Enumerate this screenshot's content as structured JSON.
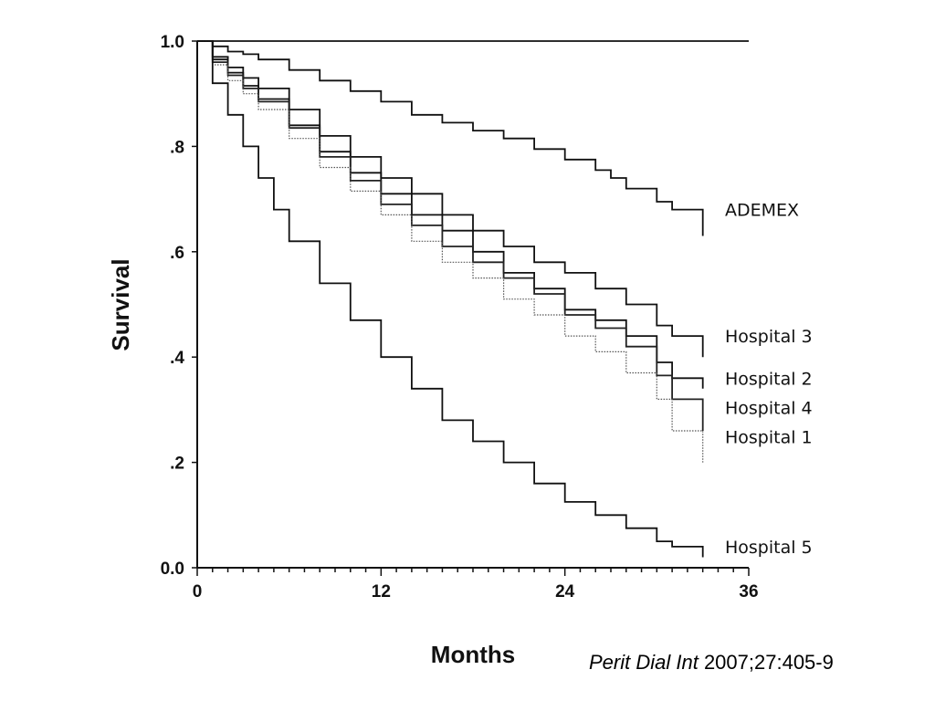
{
  "chart_data": {
    "type": "line",
    "xlabel": "Months",
    "ylabel": "Survival",
    "xlim": [
      0,
      36
    ],
    "ylim": [
      0,
      1
    ],
    "x_ticks": [
      "0",
      "12",
      "24",
      "36"
    ],
    "y_ticks": [
      "0.0",
      ".2",
      ".4",
      ".6",
      ".8",
      "1.0"
    ],
    "grid": false,
    "series": [
      {
        "name": "",
        "style": "solid",
        "color": "#111111",
        "x": [
          0,
          36
        ],
        "y": [
          1.0,
          1.0
        ]
      },
      {
        "name": "ADEMEX",
        "style": "solid",
        "color": "#111111",
        "x": [
          0,
          1,
          2,
          3,
          4,
          6,
          8,
          10,
          12,
          14,
          16,
          18,
          20,
          22,
          24,
          26,
          27,
          28,
          30,
          31,
          32,
          33,
          33
        ],
        "y": [
          1.0,
          0.99,
          0.98,
          0.975,
          0.965,
          0.945,
          0.925,
          0.905,
          0.885,
          0.86,
          0.845,
          0.83,
          0.815,
          0.795,
          0.775,
          0.755,
          0.74,
          0.72,
          0.695,
          0.68,
          0.68,
          0.68,
          0.63
        ]
      },
      {
        "name": "Hospital 3",
        "style": "solid",
        "color": "#111111",
        "x": [
          0,
          1,
          2,
          3,
          4,
          6,
          8,
          10,
          12,
          14,
          16,
          18,
          20,
          22,
          24,
          26,
          28,
          30,
          31,
          32,
          33,
          33
        ],
        "y": [
          1.0,
          0.97,
          0.95,
          0.93,
          0.91,
          0.87,
          0.82,
          0.78,
          0.74,
          0.71,
          0.67,
          0.64,
          0.61,
          0.58,
          0.56,
          0.53,
          0.5,
          0.46,
          0.44,
          0.44,
          0.44,
          0.4
        ]
      },
      {
        "name": "Hospital 2",
        "style": "solid",
        "color": "#111111",
        "x": [
          0,
          1,
          2,
          3,
          4,
          6,
          8,
          10,
          12,
          14,
          16,
          18,
          20,
          22,
          24,
          26,
          28,
          30,
          31,
          32,
          33,
          33
        ],
        "y": [
          1.0,
          0.965,
          0.94,
          0.915,
          0.89,
          0.84,
          0.79,
          0.75,
          0.71,
          0.67,
          0.64,
          0.6,
          0.56,
          0.53,
          0.49,
          0.47,
          0.44,
          0.39,
          0.36,
          0.36,
          0.36,
          0.34
        ]
      },
      {
        "name": "Hospital 4",
        "style": "solid",
        "color": "#222222",
        "x": [
          0,
          1,
          2,
          3,
          4,
          6,
          8,
          10,
          12,
          14,
          16,
          18,
          20,
          22,
          24,
          26,
          28,
          30,
          31,
          32,
          33,
          33
        ],
        "y": [
          1.0,
          0.96,
          0.935,
          0.91,
          0.885,
          0.835,
          0.78,
          0.735,
          0.69,
          0.65,
          0.61,
          0.58,
          0.55,
          0.52,
          0.48,
          0.455,
          0.42,
          0.365,
          0.32,
          0.32,
          0.32,
          0.26
        ]
      },
      {
        "name": "Hospital 1",
        "style": "dotted",
        "color": "#555555",
        "x": [
          0,
          1,
          2,
          3,
          4,
          6,
          8,
          10,
          12,
          14,
          16,
          18,
          20,
          22,
          24,
          26,
          28,
          30,
          31,
          32,
          33,
          33
        ],
        "y": [
          1.0,
          0.955,
          0.925,
          0.9,
          0.87,
          0.815,
          0.76,
          0.715,
          0.67,
          0.62,
          0.58,
          0.55,
          0.51,
          0.48,
          0.44,
          0.41,
          0.37,
          0.32,
          0.26,
          0.26,
          0.26,
          0.2
        ]
      },
      {
        "name": "Hospital 5",
        "style": "solid",
        "color": "#111111",
        "x": [
          0,
          1,
          2,
          3,
          4,
          5,
          6,
          8,
          10,
          12,
          14,
          16,
          18,
          20,
          22,
          24,
          26,
          28,
          30,
          31,
          32,
          33,
          33
        ],
        "y": [
          1.0,
          0.92,
          0.86,
          0.8,
          0.74,
          0.68,
          0.62,
          0.54,
          0.47,
          0.4,
          0.34,
          0.28,
          0.24,
          0.2,
          0.16,
          0.125,
          0.1,
          0.075,
          0.05,
          0.04,
          0.04,
          0.04,
          0.02
        ]
      }
    ]
  },
  "citation": {
    "journal": "Perit Dial Int",
    "details": " 2007;27:405-9"
  }
}
